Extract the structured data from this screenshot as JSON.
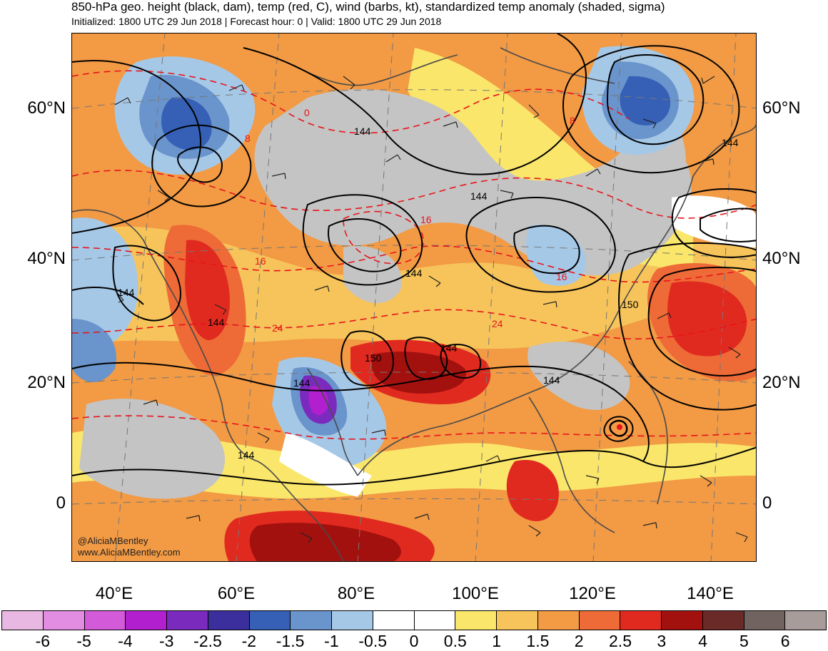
{
  "header": {
    "title": "850-hPa geo. height (black, dam), temp (red, C), wind (barbs, kt), standardized temp anomaly (shaded, sigma)",
    "subtitle": "Initialized: 1800 UTC 29 Jun 2018 | Forecast hour: 0 | Valid: 1800 UTC 29 Jun 2018"
  },
  "map": {
    "lat_labels": [
      "60°N",
      "40°N",
      "20°N",
      "0"
    ],
    "lon_labels": [
      "40°E",
      "60°E",
      "80°E",
      "100°E",
      "120°E",
      "140°E"
    ],
    "height_contour_labels": [
      "144",
      "144",
      "144",
      "144",
      "144",
      "144",
      "144",
      "150",
      "150",
      "144",
      "144",
      "144"
    ],
    "temp_contour_labels": [
      "0",
      "8",
      "8",
      "16",
      "16",
      "16",
      "24",
      "24"
    ],
    "credit_handle": "@AliciaMBentley",
    "credit_site": "www.AliciaMBentley.com"
  },
  "colorbar": {
    "ticks": [
      "-6",
      "-5",
      "-4",
      "-3",
      "-2.5",
      "-2",
      "-1.5",
      "-1",
      "-0.5",
      "0",
      "0.5",
      "1",
      "1.5",
      "2",
      "2.5",
      "3",
      "4",
      "5",
      "6"
    ],
    "colors": [
      "#e8b8e2",
      "#e38de2",
      "#d35ad9",
      "#b11fcf",
      "#7a2bbd",
      "#3a2f9c",
      "#3560b5",
      "#6a94cc",
      "#a6c8e7",
      "#ffffff",
      "#ffffff",
      "#fae66a",
      "#f6c45a",
      "#f29a44",
      "#ee6a36",
      "#e12a1f",
      "#a3110f",
      "#6a2a28",
      "#716460",
      "#a79c9a"
    ]
  },
  "colors": {
    "anomaly_gray": "#c4c4c4",
    "contour_black": "#000000",
    "temp_red": "#e8141b",
    "coast": "#555555"
  }
}
